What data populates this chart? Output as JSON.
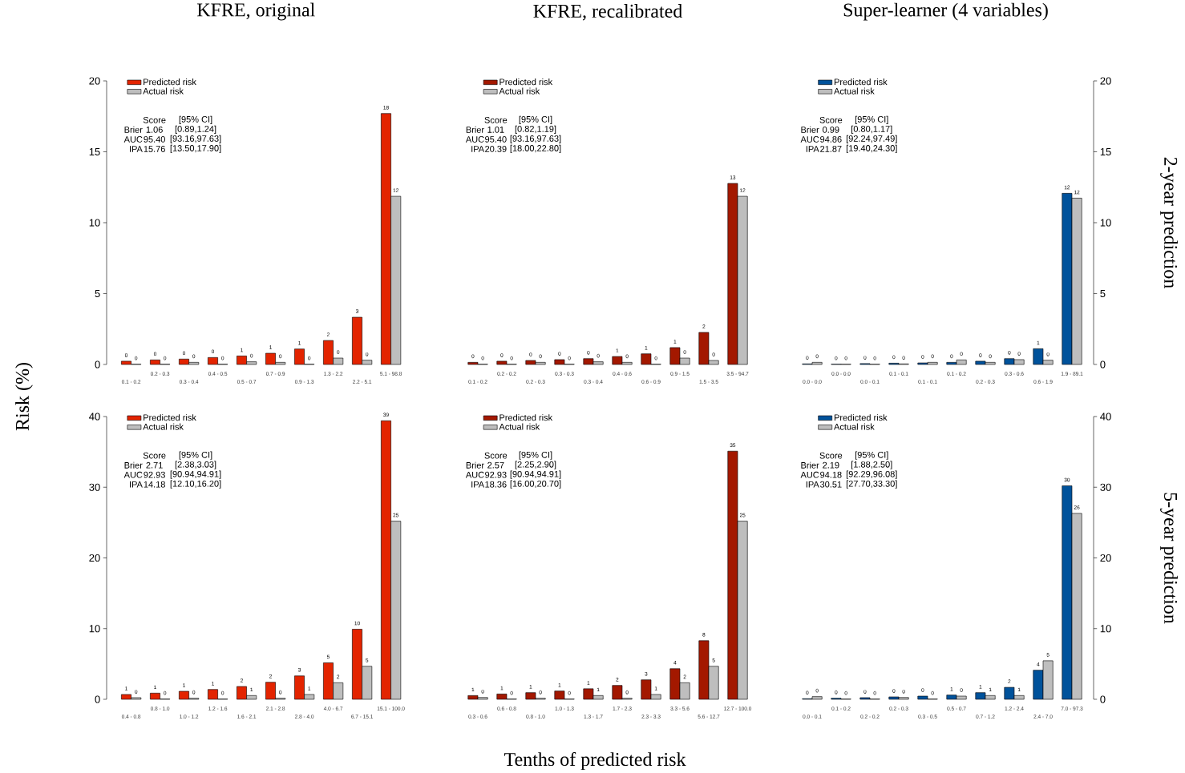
{
  "chart_data": [
    {
      "type": "bar",
      "title": "KFRE, original",
      "ylabel": "Risk (%)",
      "legend": "top left",
      "ylim": [
        0,
        20
      ],
      "yticks": [
        0,
        5,
        10,
        15,
        20
      ],
      "categories": [
        "0.1 - 0.2",
        "0.2 - 0.3",
        "0.3 - 0.4",
        "0.4 - 0.5",
        "0.5 - 0.7",
        "0.7 - 0.9",
        "0.9 - 1.3",
        "1.3 - 2.2",
        "2.2 - 5.1",
        "5.1 - 98.8"
      ],
      "series": [
        {
          "name": "Predicted risk",
          "color": "#e32400",
          "values": [
            0.23,
            0.32,
            0.38,
            0.49,
            0.6,
            0.79,
            1.09,
            1.69,
            3.33,
            17.7
          ],
          "value_labels": [
            "0",
            "0",
            "0",
            "0",
            "1",
            "1",
            "1",
            "2",
            "3",
            "18"
          ]
        },
        {
          "name": "Actual risk",
          "color": "#bebebe",
          "values": [
            0.02,
            0.02,
            0.15,
            0.02,
            0.19,
            0.15,
            0.02,
            0.45,
            0.3,
            11.86
          ],
          "value_labels": [
            "0",
            "0",
            "0",
            "0",
            "0",
            "0",
            "0",
            "0",
            "0",
            "12"
          ]
        }
      ],
      "annotations": [
        "Score",
        "[95% CI]",
        "Brier",
        "1.06",
        "[0.89,1.24]",
        "AUC",
        "95.40",
        "[93.16,97.63]",
        "IPA",
        "15.76",
        "[13.50,17.90]"
      ]
    },
    {
      "type": "bar",
      "title": "KFRE, recalibrated",
      "legend": "top left",
      "tick_labels": "x",
      "ylim": [
        0,
        20
      ],
      "categories": [
        "0.1 - 0.2",
        "0.2 - 0.2",
        "0.2 - 0.3",
        "0.3 - 0.3",
        "0.3 - 0.4",
        "0.4 - 0.6",
        "0.6 - 0.9",
        "0.9 - 1.5",
        "1.5 - 3.5",
        "3.5 - 94.7"
      ],
      "series": [
        {
          "name": "Predicted risk",
          "color": "#a31800",
          "values": [
            0.15,
            0.23,
            0.28,
            0.34,
            0.41,
            0.56,
            0.75,
            1.19,
            2.26,
            12.77
          ],
          "value_labels": [
            "0",
            "0",
            "0",
            "0",
            "0",
            "1",
            "1",
            "1",
            "2",
            "13"
          ]
        },
        {
          "name": "Actual risk",
          "color": "#bebebe",
          "values": [
            0.02,
            0.02,
            0.15,
            0.02,
            0.19,
            0.15,
            0.02,
            0.45,
            0.28,
            11.86
          ],
          "value_labels": [
            "0",
            "0",
            "0",
            "0",
            "0",
            "0",
            "0",
            "0",
            "0",
            "12"
          ]
        }
      ],
      "annotations": [
        "Score",
        "[95% CI]",
        "Brier",
        "1.01",
        "[0.82,1.19]",
        "AUC",
        "95.40",
        "[93.16,97.63]",
        "IPA",
        "20.39",
        "[18.00,22.80]"
      ]
    },
    {
      "type": "bar",
      "title": "Super-learner (4 variables)",
      "legend": "top left",
      "ylim": [
        0,
        20
      ],
      "yticks": [
        0,
        5,
        10,
        15,
        20
      ],
      "categories": [
        "0.0 - 0.0",
        "0.0 - 0.0",
        "0.0 - 0.1",
        "0.1 - 0.1",
        "0.1 - 0.1",
        "0.1 - 0.2",
        "0.2 - 0.3",
        "0.3 - 0.6",
        "0.6 - 1.9",
        "1.9 - 89.1"
      ],
      "series": [
        {
          "name": "Predicted risk",
          "color": "#00529b",
          "values": [
            0.04,
            0.02,
            0.06,
            0.09,
            0.11,
            0.15,
            0.23,
            0.41,
            1.11,
            12.07
          ],
          "value_labels": [
            "0",
            "0",
            "0",
            "0",
            "0",
            "0",
            "0",
            "0",
            "1",
            "12"
          ]
        },
        {
          "name": "Actual risk",
          "color": "#bebebe",
          "values": [
            0.15,
            0.02,
            0.02,
            0.04,
            0.15,
            0.32,
            0.15,
            0.34,
            0.3,
            11.73
          ],
          "value_labels": [
            "0",
            "0",
            "0",
            "0",
            "0",
            "0",
            "0",
            "0",
            "0",
            "12"
          ]
        }
      ],
      "annotations": [
        "Score",
        "[95% CI]",
        "Brier",
        "0.99",
        "[0.80,1.17]",
        "AUC",
        "94.86",
        "[92.24,97.49]",
        "IPA",
        "21.87",
        "[19.40,24.30]",
        "2-year prediction"
      ]
    },
    {
      "type": "bar",
      "legend": "top left",
      "ylim": [
        0,
        40
      ],
      "yticks": [
        0,
        10,
        20,
        30,
        40
      ],
      "categories": [
        "0.4 - 0.8",
        "0.8 - 1.0",
        "1.0 - 1.2",
        "1.2 - 1.6",
        "1.6 - 2.1",
        "2.1 - 2.8",
        "2.8 - 4.0",
        "4.0 - 6.7",
        "6.7 - 15.1",
        "15.1 - 100.0"
      ],
      "series": [
        {
          "name": "Predicted risk",
          "color": "#e32400",
          "values": [
            0.68,
            0.87,
            1.13,
            1.39,
            1.81,
            2.41,
            3.31,
            5.16,
            9.91,
            39.4
          ],
          "value_labels": [
            "1",
            "1",
            "1",
            "1",
            "2",
            "2",
            "3",
            "5",
            "10",
            "39"
          ]
        },
        {
          "name": "Actual risk",
          "color": "#bebebe",
          "values": [
            0.23,
            0.04,
            0.15,
            0.04,
            0.53,
            0.15,
            0.68,
            2.34,
            4.67,
            25.2
          ],
          "value_labels": [
            "0",
            "0",
            "0",
            "0",
            "1",
            "0",
            "1",
            "2",
            "5",
            "25"
          ]
        }
      ],
      "annotations": [
        "Score",
        "[95% CI]",
        "Brier",
        "2.71",
        "[2.38,3.03]",
        "AUC",
        "92.93",
        "[90.94,94.91]",
        "IPA",
        "14.18",
        "[12.10,16.20]"
      ]
    },
    {
      "type": "bar",
      "xlabel": "Tenths of predicted risk",
      "legend": "top left",
      "tick_labels": "x",
      "ylim": [
        0,
        40
      ],
      "categories": [
        "0.3 - 0.6",
        "0.6 - 0.8",
        "0.8 - 1.0",
        "1.0 - 1.3",
        "1.3 - 1.7",
        "1.7 - 2.3",
        "2.3 - 3.3",
        "3.3 - 5.6",
        "5.6 - 12.7",
        "12.7 - 100.0"
      ],
      "series": [
        {
          "name": "Predicted risk",
          "color": "#a31800",
          "values": [
            0.53,
            0.75,
            0.94,
            1.17,
            1.49,
            1.96,
            2.75,
            4.33,
            8.29,
            35.1
          ],
          "value_labels": [
            "1",
            "1",
            "1",
            "1",
            "1",
            "2",
            "3",
            "4",
            "8",
            "35"
          ]
        },
        {
          "name": "Actual risk",
          "color": "#bebebe",
          "values": [
            0.26,
            0.04,
            0.15,
            0.04,
            0.53,
            0.15,
            0.68,
            2.34,
            4.67,
            25.2
          ],
          "value_labels": [
            "0",
            "0",
            "0",
            "0",
            "1",
            "0",
            "1",
            "2",
            "5",
            "25"
          ]
        }
      ],
      "annotations": [
        "Score",
        "[95% CI]",
        "Brier",
        "2.57",
        "[2.25,2.90]",
        "AUC",
        "92.93",
        "[90.94,94.91]",
        "IPA",
        "18.36",
        "[16.00,20.70]"
      ]
    },
    {
      "type": "bar",
      "legend": "top left",
      "ylim": [
        0,
        40
      ],
      "yticks": [
        0,
        10,
        20,
        30,
        40
      ],
      "categories": [
        "0.0 - 0.1",
        "0.1 - 0.2",
        "0.2 - 0.2",
        "0.2 - 0.3",
        "0.3 - 0.5",
        "0.5 - 0.7",
        "0.7 - 1.2",
        "1.2 - 2.4",
        "2.4 - 7.0",
        "7.0 - 97.3"
      ],
      "series": [
        {
          "name": "Predicted risk",
          "color": "#00529b",
          "values": [
            0.08,
            0.15,
            0.23,
            0.34,
            0.45,
            0.6,
            0.94,
            1.69,
            4.11,
            30.2
          ],
          "value_labels": [
            "0",
            "0",
            "0",
            "0",
            "0",
            "1",
            "1",
            "2",
            "4",
            "30"
          ]
        },
        {
          "name": "Actual risk",
          "color": "#bebebe",
          "values": [
            0.38,
            0.04,
            0.04,
            0.26,
            0.04,
            0.45,
            0.53,
            0.53,
            5.45,
            26.3
          ],
          "value_labels": [
            "0",
            "0",
            "0",
            "0",
            "0",
            "0",
            "1",
            "1",
            "5",
            "26"
          ]
        }
      ],
      "annotations": [
        "Score",
        "[95% CI]",
        "Brier",
        "2.19",
        "[1.88,2.50]",
        "AUC",
        "94.18",
        "[92.29,96.08]",
        "IPA",
        "30.51",
        "[27.70,33.30]",
        "5-year prediction"
      ]
    }
  ]
}
